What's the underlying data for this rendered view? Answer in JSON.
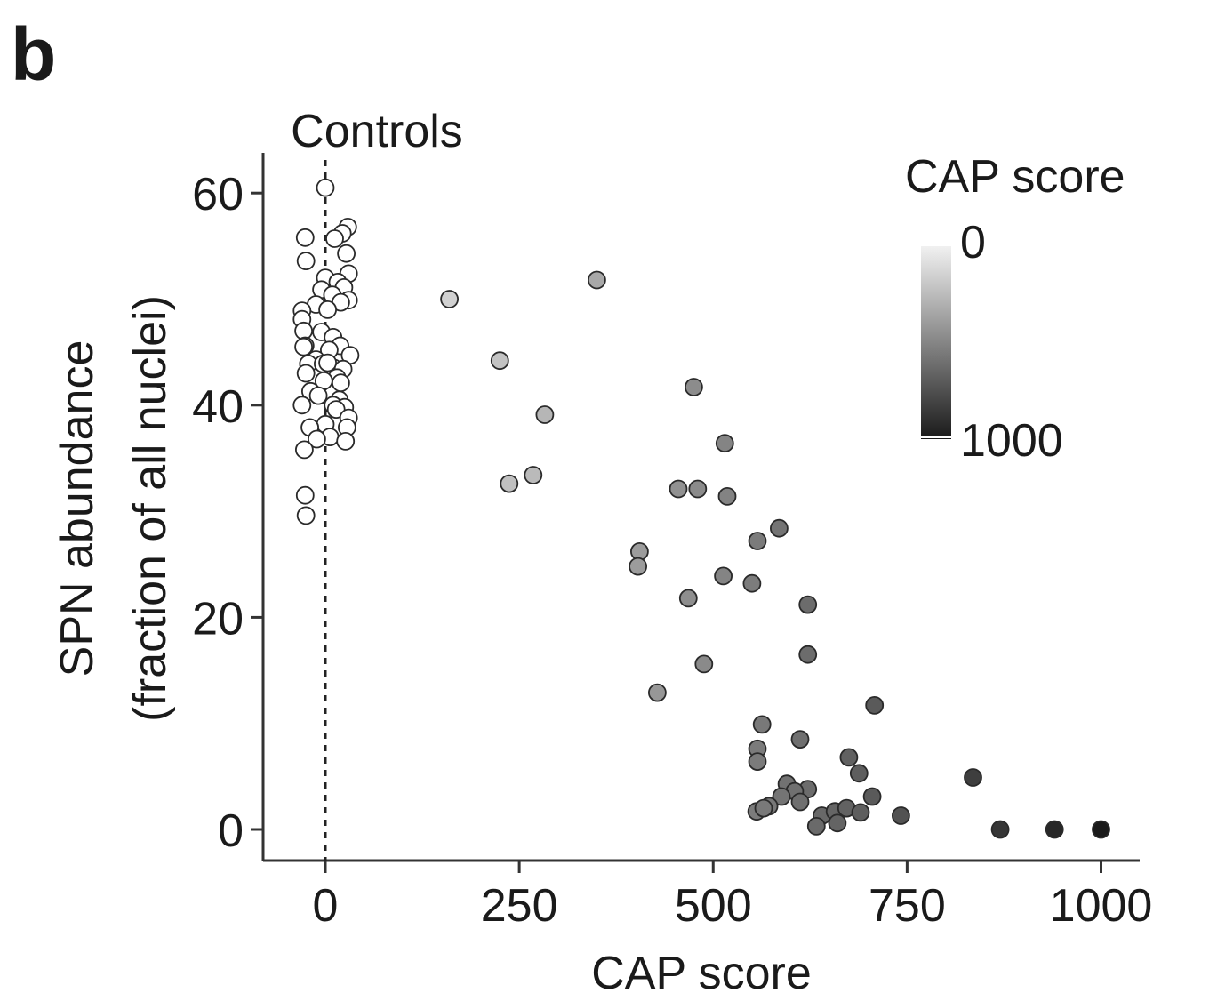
{
  "panel_label": "b",
  "chart_data": {
    "type": "scatter",
    "xlabel": "CAP score",
    "ylabel_lines": [
      "SPN abundance",
      "(fraction of all nuclei)"
    ],
    "xlim": [
      -80,
      1050
    ],
    "ylim": [
      -3,
      63
    ],
    "xticks": [
      0,
      250,
      500,
      750,
      1000
    ],
    "yticks": [
      0,
      20,
      40,
      60
    ],
    "annotation": "Controls",
    "reference_line_x": 0,
    "grid": false,
    "color_scale": {
      "title": "CAP score",
      "min_label": "0",
      "max_label": "1000",
      "min": 0,
      "max": 1000,
      "low_color": "#f4f4f4",
      "high_color": "#1a1a1a",
      "placement": "top-right"
    },
    "controls": [
      [
        0,
        60.5
      ],
      [
        29,
        56.8
      ],
      [
        22,
        56.2
      ],
      [
        -26,
        55.8
      ],
      [
        12,
        55.7
      ],
      [
        27,
        54.3
      ],
      [
        -25,
        53.6
      ],
      [
        30,
        52.4
      ],
      [
        0,
        52.0
      ],
      [
        16,
        51.6
      ],
      [
        24,
        51.1
      ],
      [
        -5,
        50.9
      ],
      [
        9,
        50.4
      ],
      [
        30,
        49.9
      ],
      [
        20,
        49.7
      ],
      [
        -12,
        49.5
      ],
      [
        -30,
        48.9
      ],
      [
        3,
        49.0
      ],
      [
        -30,
        48.1
      ],
      [
        -28,
        47.0
      ],
      [
        -5,
        46.9
      ],
      [
        10,
        46.4
      ],
      [
        19,
        45.6
      ],
      [
        -26,
        45.6
      ],
      [
        -28,
        45.5
      ],
      [
        5,
        45.2
      ],
      [
        32,
        44.7
      ],
      [
        -12,
        44.3
      ],
      [
        -22,
        43.9
      ],
      [
        11,
        43.5
      ],
      [
        -3,
        43.9
      ],
      [
        3,
        44.0
      ],
      [
        23,
        43.4
      ],
      [
        -25,
        43.0
      ],
      [
        15,
        42.6
      ],
      [
        -2,
        42.3
      ],
      [
        20,
        42.1
      ],
      [
        -19,
        41.3
      ],
      [
        -9,
        40.9
      ],
      [
        -30,
        40.0
      ],
      [
        18,
        40.5
      ],
      [
        10,
        40.0
      ],
      [
        25,
        39.8
      ],
      [
        14,
        39.6
      ],
      [
        30,
        38.8
      ],
      [
        0,
        38.2
      ],
      [
        -20,
        37.9
      ],
      [
        28,
        37.9
      ],
      [
        6,
        37.0
      ],
      [
        -11,
        36.8
      ],
      [
        26,
        36.6
      ],
      [
        -27,
        35.8
      ],
      [
        -26,
        31.5
      ],
      [
        -25,
        29.6
      ]
    ],
    "cases": [
      [
        160,
        50.0
      ],
      [
        350,
        51.8
      ],
      [
        225,
        44.2
      ],
      [
        283,
        39.1
      ],
      [
        237,
        32.6
      ],
      [
        268,
        33.4
      ],
      [
        475,
        41.7
      ],
      [
        515,
        36.4
      ],
      [
        455,
        32.1
      ],
      [
        480,
        32.1
      ],
      [
        518,
        31.4
      ],
      [
        585,
        28.4
      ],
      [
        557,
        27.2
      ],
      [
        405,
        26.2
      ],
      [
        403,
        24.8
      ],
      [
        513,
        23.9
      ],
      [
        550,
        23.2
      ],
      [
        468,
        21.8
      ],
      [
        622,
        21.2
      ],
      [
        622,
        16.5
      ],
      [
        488,
        15.6
      ],
      [
        428,
        12.9
      ],
      [
        708,
        11.7
      ],
      [
        563,
        9.9
      ],
      [
        612,
        8.5
      ],
      [
        557,
        7.6
      ],
      [
        557,
        6.4
      ],
      [
        675,
        6.8
      ],
      [
        688,
        5.3
      ],
      [
        835,
        4.9
      ],
      [
        595,
        4.3
      ],
      [
        622,
        3.8
      ],
      [
        605,
        3.6
      ],
      [
        588,
        3.1
      ],
      [
        612,
        2.6
      ],
      [
        572,
        2.2
      ],
      [
        705,
        3.1
      ],
      [
        556,
        1.7
      ],
      [
        565,
        2.0
      ],
      [
        640,
        1.3
      ],
      [
        657,
        1.7
      ],
      [
        672,
        2.0
      ],
      [
        690,
        1.6
      ],
      [
        742,
        1.3
      ],
      [
        633,
        0.3
      ],
      [
        660,
        0.6
      ],
      [
        870,
        0.0
      ],
      [
        940,
        0.0
      ],
      [
        1000,
        0.0
      ]
    ]
  }
}
